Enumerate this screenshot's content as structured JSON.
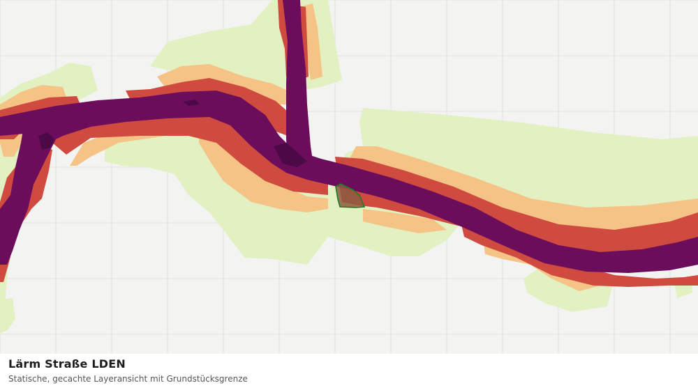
{
  "map": {
    "layer": "noise-road-lden",
    "colors": {
      "background": "#f3f4f2",
      "grid": "#e0e2df",
      "zone_low": "#e2f0c2",
      "zone_mid": "#f4c385",
      "zone_high": "#cf4a3f",
      "zone_very_high": "#6c0d5c",
      "zone_peak": "#4b0a45",
      "parcel_fill": "#8c5a40",
      "parcel_outline": "#1f7a26"
    }
  },
  "caption": {
    "title": "Lärm Straße LDEN",
    "subtitle": "Statische, gecachte Layeransicht mit Grundstücksgrenze"
  }
}
